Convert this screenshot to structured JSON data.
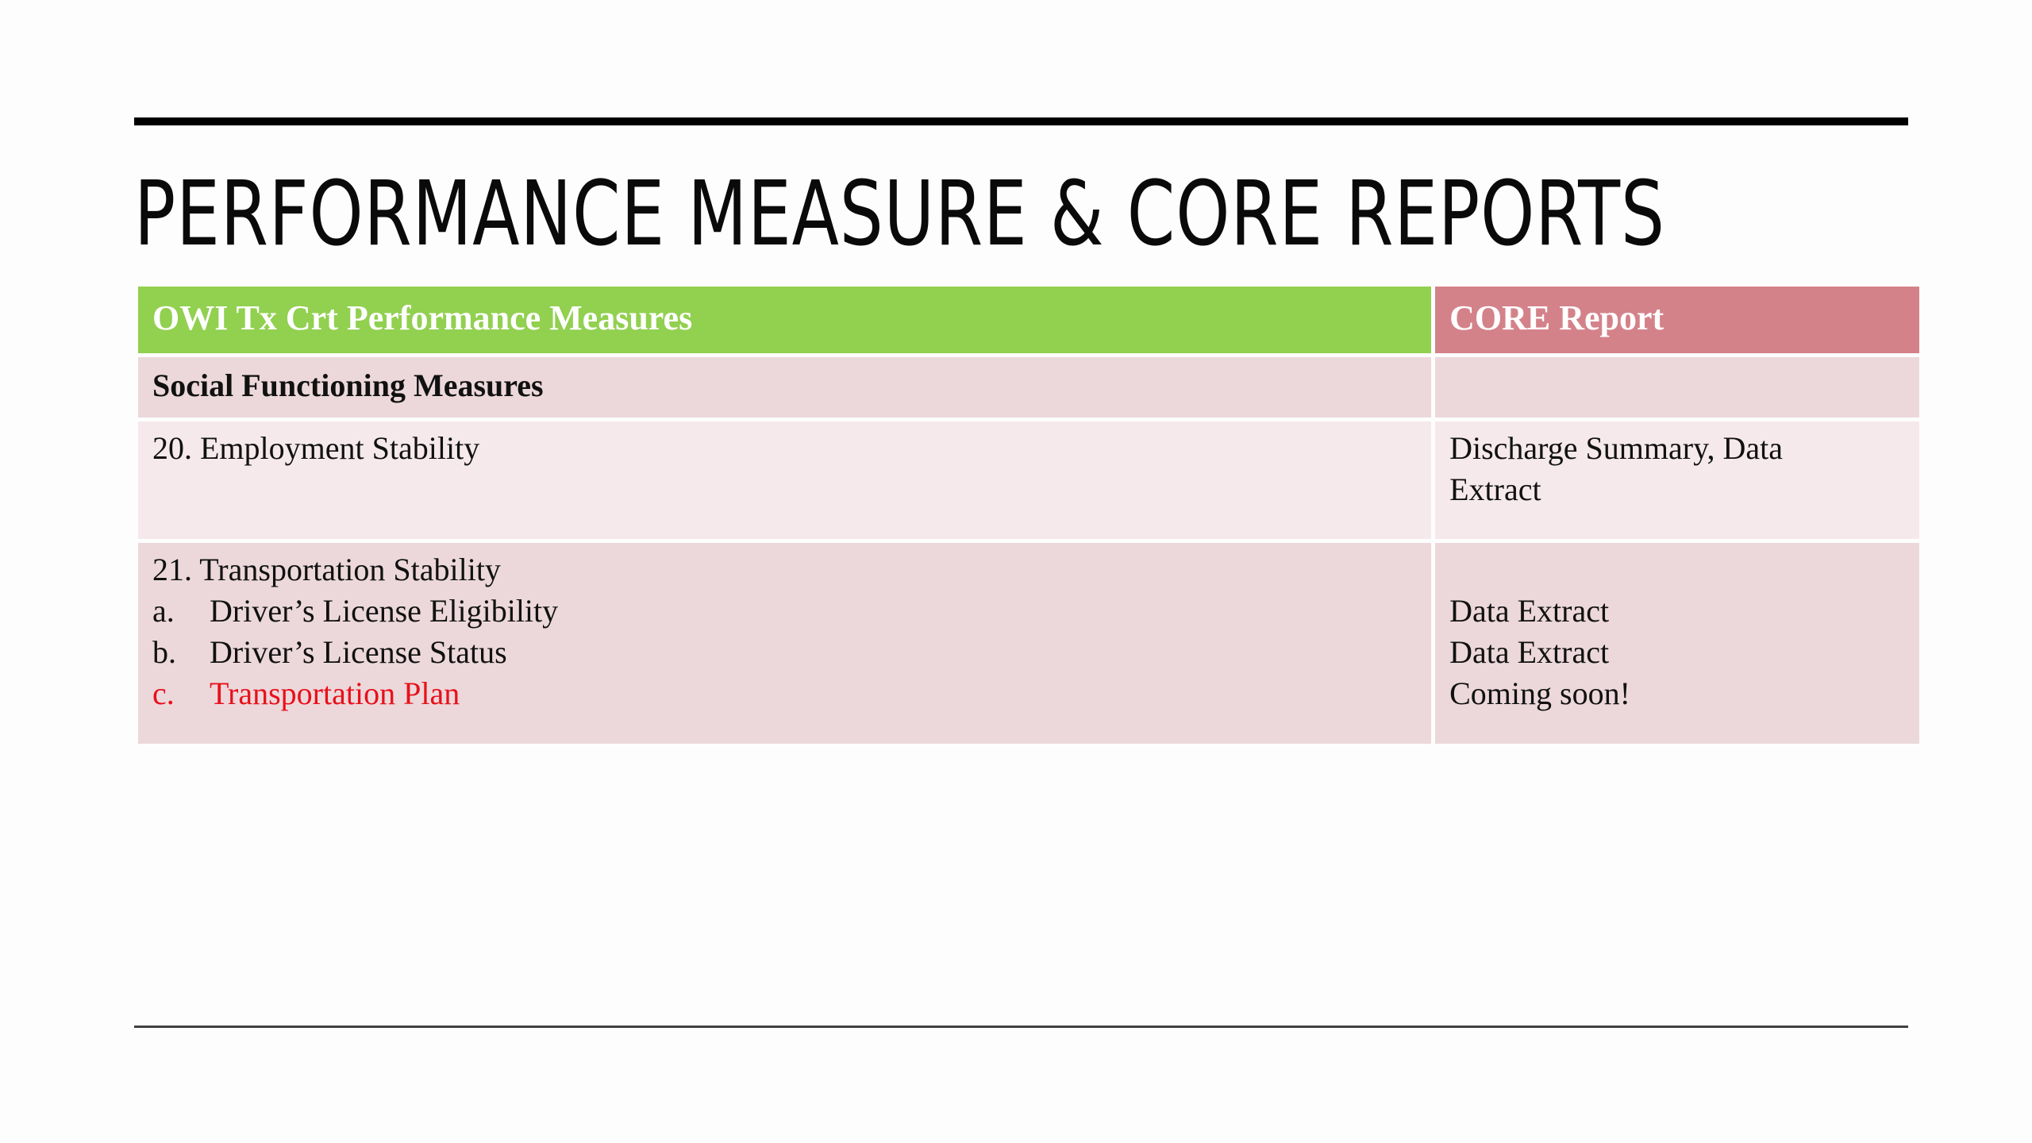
{
  "slide": {
    "title": "PERFORMANCE MEASURE & CORE REPORTS"
  },
  "table": {
    "headers": {
      "left": "OWI Tx Crt Performance Measures",
      "right": "CORE Report"
    },
    "section": {
      "label": "Social Functioning Measures",
      "report": ""
    },
    "employment": {
      "measure": "20. Employment Stability",
      "report_line1": "Discharge Summary, Data",
      "report_line2": "Extract"
    },
    "transportation": {
      "measure": "21. Transportation Stability",
      "items": [
        {
          "marker": "a.",
          "label": "Driver’s License Eligibility",
          "report": "Data Extract"
        },
        {
          "marker": "b.",
          "label": "Driver’s License Status",
          "report": "Data Extract"
        },
        {
          "marker": "c.",
          "label": "Transportation Plan",
          "report": "Coming soon!"
        }
      ]
    }
  },
  "colors": {
    "header_left": "#92d050",
    "header_right": "#d4828a",
    "row_dark": "#ecd8db",
    "row_light": "#f5e9eb",
    "highlight_text": "#e8101a"
  }
}
